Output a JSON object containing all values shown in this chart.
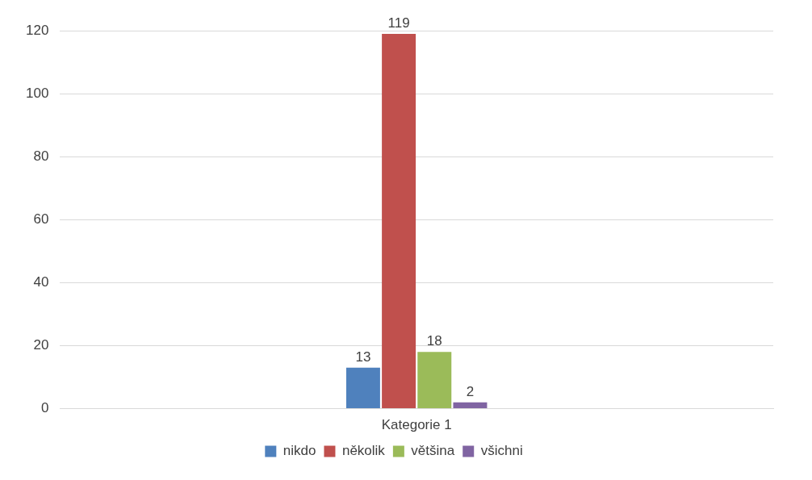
{
  "chart_data": {
    "type": "bar",
    "categories": [
      "Kategorie 1"
    ],
    "series": [
      {
        "name": "nikdo",
        "color": "#4f81bd",
        "values": [
          13
        ]
      },
      {
        "name": "několik",
        "color": "#c0504d",
        "values": [
          119
        ]
      },
      {
        "name": "většina",
        "color": "#9bbb59",
        "values": [
          18
        ]
      },
      {
        "name": "všichni",
        "color": "#8064a2",
        "values": [
          2
        ]
      }
    ],
    "ylim": [
      0,
      120
    ],
    "yticks": [
      0,
      20,
      40,
      60,
      80,
      100,
      120
    ],
    "grid": "y",
    "legend": "bottom",
    "data_labels": true
  }
}
